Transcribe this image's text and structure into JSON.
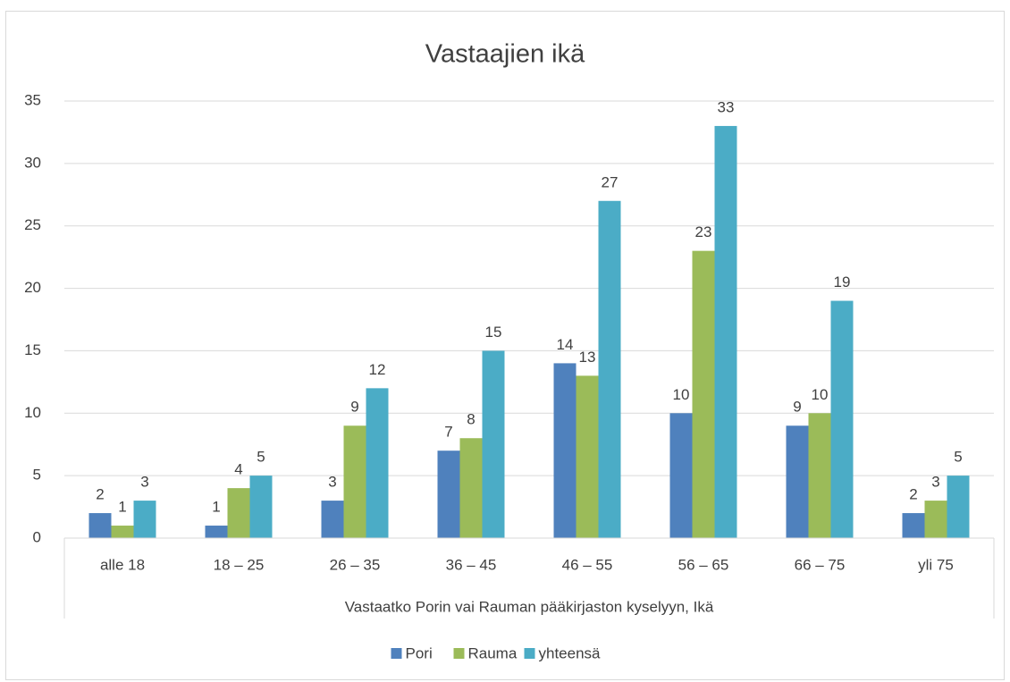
{
  "chart_data": {
    "type": "bar",
    "title": "Vastaajien ikä",
    "x_label": "Vastaatko Porin vai Rauman pääkirjaston kyselyyn, Ikä",
    "categories": [
      "alle 18",
      "18 – 25",
      "26 – 35",
      "36 – 45",
      "46 – 55",
      "56 – 65",
      "66 – 75",
      "yli 75"
    ],
    "series": [
      {
        "name": "Pori",
        "color": "#4f81bd",
        "values": [
          2,
          1,
          3,
          7,
          14,
          10,
          9,
          2
        ]
      },
      {
        "name": "Rauma",
        "color": "#9bbb59",
        "values": [
          1,
          4,
          9,
          8,
          13,
          23,
          10,
          3
        ]
      },
      {
        "name": "yhteensä",
        "color": "#4bacc6",
        "values": [
          3,
          5,
          12,
          15,
          27,
          33,
          19,
          5
        ]
      }
    ],
    "ylim": [
      0,
      35
    ],
    "yticks": [
      0,
      5,
      10,
      15,
      20,
      25,
      30,
      35
    ],
    "grid": true,
    "legend": "bottom"
  }
}
